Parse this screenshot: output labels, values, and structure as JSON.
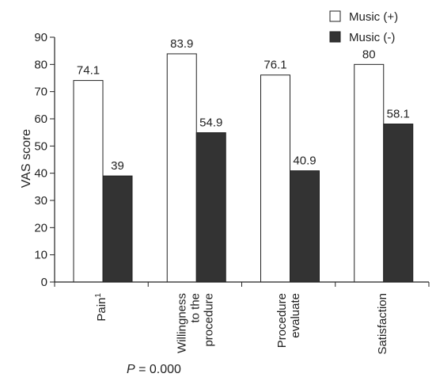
{
  "chart_data": {
    "type": "bar",
    "categories": [
      [
        "Pain"
      ],
      [
        "Willingness",
        "to the",
        "procedure"
      ],
      [
        "Procedure",
        "evaluate"
      ],
      [
        "Satisfaction"
      ]
    ],
    "category_superscripts": [
      "1",
      "",
      "",
      ""
    ],
    "series": [
      {
        "name": "Music (+)",
        "values": [
          74.1,
          83.9,
          76.1,
          80
        ],
        "labels": [
          "74.1",
          "83.9",
          "76.1",
          "80"
        ],
        "color": "#ffffff"
      },
      {
        "name": "Music (-)",
        "values": [
          39,
          54.9,
          40.9,
          58.1
        ],
        "labels": [
          "39",
          "54.9",
          "40.9",
          "58.1"
        ],
        "color": "#333333"
      }
    ],
    "ylabel": "VAS score",
    "ylim": [
      0,
      90
    ],
    "yticks": [
      0,
      10,
      20,
      30,
      40,
      50,
      60,
      70,
      80,
      90
    ],
    "legend_position": "top-right",
    "grid": false,
    "annotation": {
      "italic": "P",
      "rest": " = 0.000"
    }
  }
}
